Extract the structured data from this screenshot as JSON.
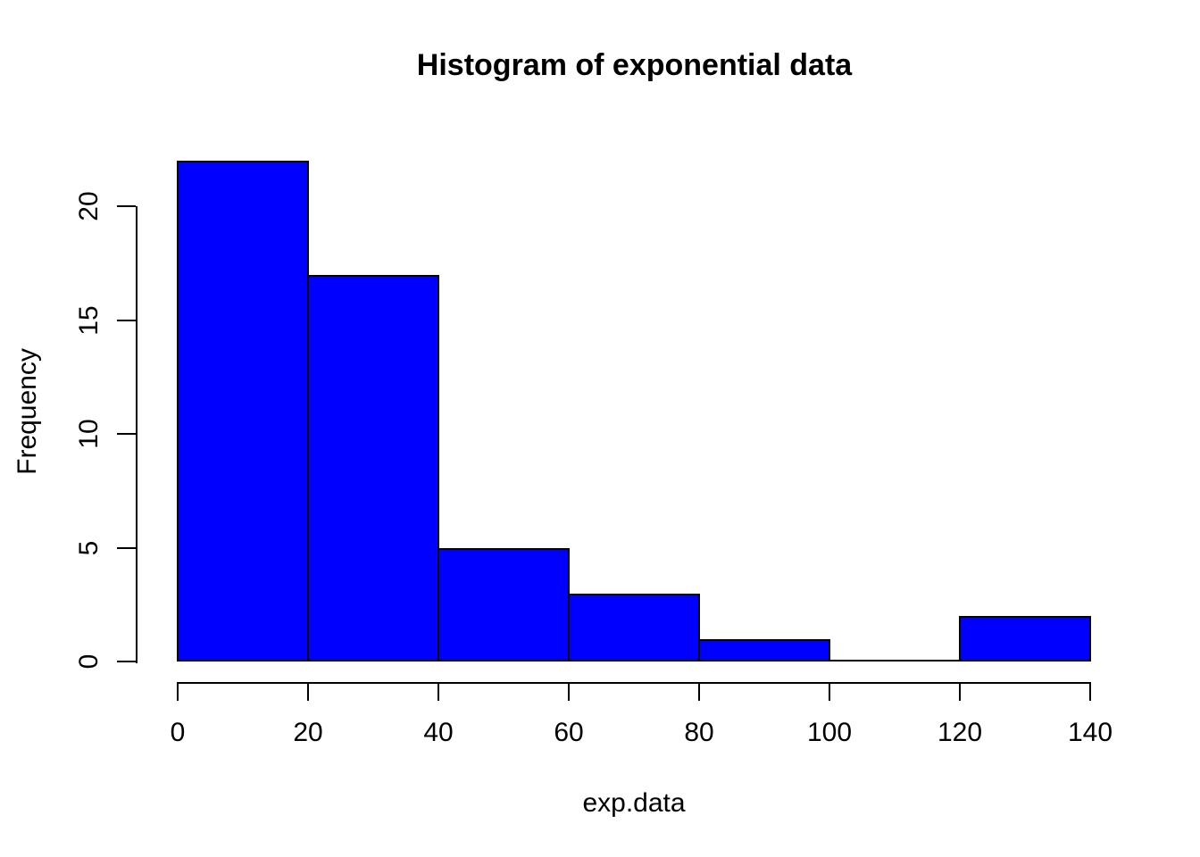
{
  "figure": {
    "background": "#FFFFFF"
  },
  "chart_data": {
    "type": "bar",
    "subtype": "histogram",
    "title": "Histogram of exponential data",
    "xlabel": "exp.data",
    "ylabel": "Frequency",
    "bin_edges": [
      0,
      20,
      40,
      60,
      80,
      100,
      120,
      140
    ],
    "counts": [
      22,
      17,
      5,
      3,
      1,
      0,
      2
    ],
    "x_ticks": [
      0,
      20,
      40,
      60,
      80,
      100,
      120,
      140
    ],
    "x_tick_labels": [
      "0",
      "20",
      "40",
      "60",
      "80",
      "100",
      "120",
      "140"
    ],
    "y_ticks": [
      0,
      5,
      10,
      15,
      20
    ],
    "y_tick_labels": [
      "0",
      "5",
      "10",
      "15",
      "20"
    ],
    "xlim": [
      0,
      140
    ],
    "ylim": [
      0,
      22
    ],
    "bar_fill": "#0000FF",
    "bar_border": "#000000",
    "axis_color": "#000000",
    "grid": false,
    "legend": "none"
  }
}
